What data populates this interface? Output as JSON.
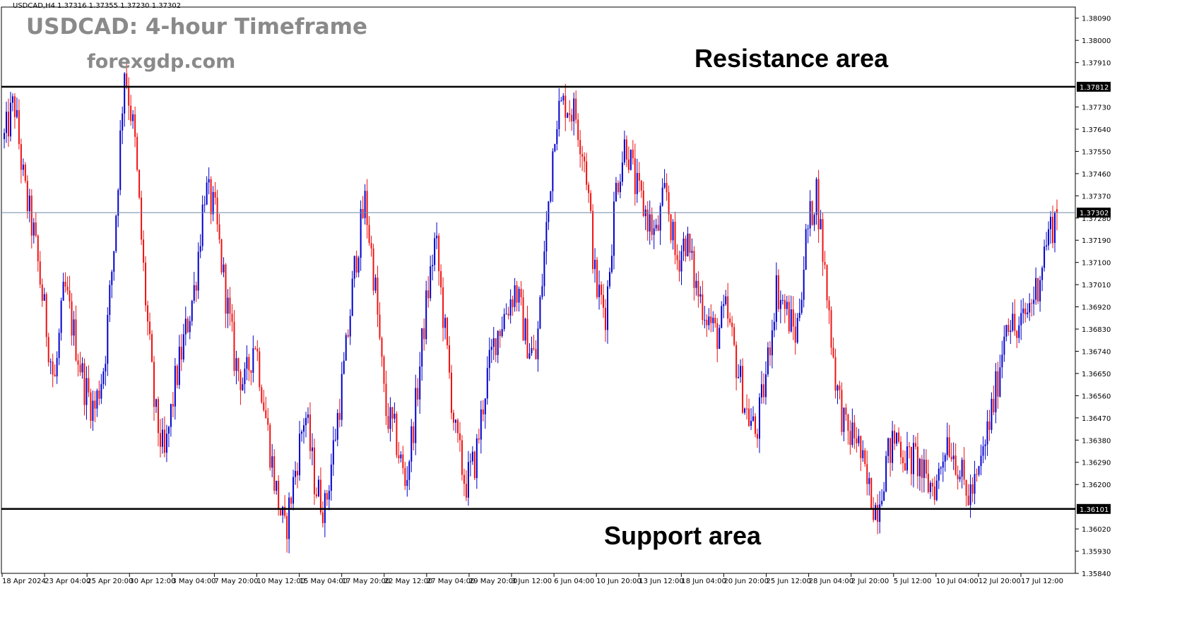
{
  "header": {
    "symbol_line": "USDCAD,H4  1.37316 1.37355 1.37230 1.37302"
  },
  "title": "USDCAD: 4-hour Timeframe",
  "brand": "forexgdp.com",
  "labels": {
    "resistance": "Resistance area",
    "support": "Support area"
  },
  "colors": {
    "bull": "#0000cc",
    "bear": "#ee1111",
    "level_line": "#000000",
    "current_price_line": "#6f86a8"
  },
  "chart_data": {
    "type": "candlestick",
    "title": "USDCAD: 4-hour Timeframe",
    "xlabel": "",
    "ylabel": "",
    "ylim": [
      1.3584,
      1.38135
    ],
    "y_ticks": [
      1.3809,
      1.38,
      1.3791,
      1.3773,
      1.3764,
      1.3755,
      1.3746,
      1.3737,
      1.3728,
      1.3719,
      1.371,
      1.3701,
      1.3692,
      1.3683,
      1.3674,
      1.3665,
      1.3656,
      1.3647,
      1.3638,
      1.3629,
      1.362,
      1.3602,
      1.3593,
      1.3584
    ],
    "y_tick_labels": [
      "1.38090",
      "1.38000",
      "1.37910",
      "1.37730",
      "1.37640",
      "1.37550",
      "1.37460",
      "1.37370",
      "1.37280",
      "1.37190",
      "1.37100",
      "1.37010",
      "1.36920",
      "1.36830",
      "1.36740",
      "1.36650",
      "1.36560",
      "1.36470",
      "1.36380",
      "1.36290",
      "1.36200",
      "1.36020",
      "1.35930",
      "1.35840"
    ],
    "x_tick_labels": [
      "18 Apr 2024",
      "23 Apr 04:00",
      "25 Apr 20:00",
      "30 Apr 12:00",
      "3 May 04:00",
      "7 May 20:00",
      "10 May 12:00",
      "15 May 04:00",
      "17 May 20:00",
      "22 May 12:00",
      "27 May 04:00",
      "29 May 20:00",
      "3 Jun 12:00",
      "6 Jun 04:00",
      "10 Jun 20:00",
      "13 Jun 12:00",
      "18 Jun 04:00",
      "20 Jun 20:00",
      "25 Jun 12:00",
      "28 Jun 04:00",
      "2 Jul 20:00",
      "5 Jul 12:00",
      "10 Jul 04:00",
      "12 Jul 20:00",
      "17 Jul 12:00"
    ],
    "levels": [
      {
        "name": "Resistance area",
        "price": 1.37812,
        "label": "1.37812"
      },
      {
        "name": "Support area",
        "price": 1.36101,
        "label": "1.36101"
      }
    ],
    "current_price": {
      "price": 1.37302,
      "label": "1.37302"
    },
    "last_bar": {
      "open": 1.37316,
      "high": 1.37355,
      "low": 1.3723,
      "close": 1.37302
    },
    "grid": false,
    "legend": "none",
    "series": [
      {
        "name": "USDCAD",
        "anchors": [
          1.376,
          1.3775,
          1.374,
          1.372,
          1.369,
          1.366,
          1.37,
          1.368,
          1.366,
          1.365,
          1.367,
          1.372,
          1.379,
          1.376,
          1.37,
          1.365,
          1.363,
          1.366,
          1.368,
          1.37,
          1.374,
          1.373,
          1.37,
          1.367,
          1.366,
          1.368,
          1.365,
          1.362,
          1.36,
          1.3625,
          1.365,
          1.362,
          1.361,
          1.364,
          1.367,
          1.371,
          1.3735,
          1.37,
          1.365,
          1.364,
          1.362,
          1.365,
          1.369,
          1.372,
          1.368,
          1.364,
          1.362,
          1.363,
          1.366,
          1.368,
          1.369,
          1.37,
          1.368,
          1.367,
          1.372,
          1.377,
          1.3775,
          1.377,
          1.375,
          1.37,
          1.369,
          1.374,
          1.376,
          1.374,
          1.373,
          1.372,
          1.374,
          1.371,
          1.372,
          1.37,
          1.369,
          1.368,
          1.369,
          1.367,
          1.365,
          1.364,
          1.3665,
          1.37,
          1.369,
          1.368,
          1.372,
          1.374,
          1.37,
          1.366,
          1.364,
          1.364,
          1.362,
          1.361,
          1.363,
          1.364,
          1.363,
          1.363,
          1.362,
          1.362,
          1.364,
          1.363,
          1.3615,
          1.362,
          1.364,
          1.366,
          1.369,
          1.368,
          1.369,
          1.37,
          1.372,
          1.373
        ]
      }
    ]
  }
}
